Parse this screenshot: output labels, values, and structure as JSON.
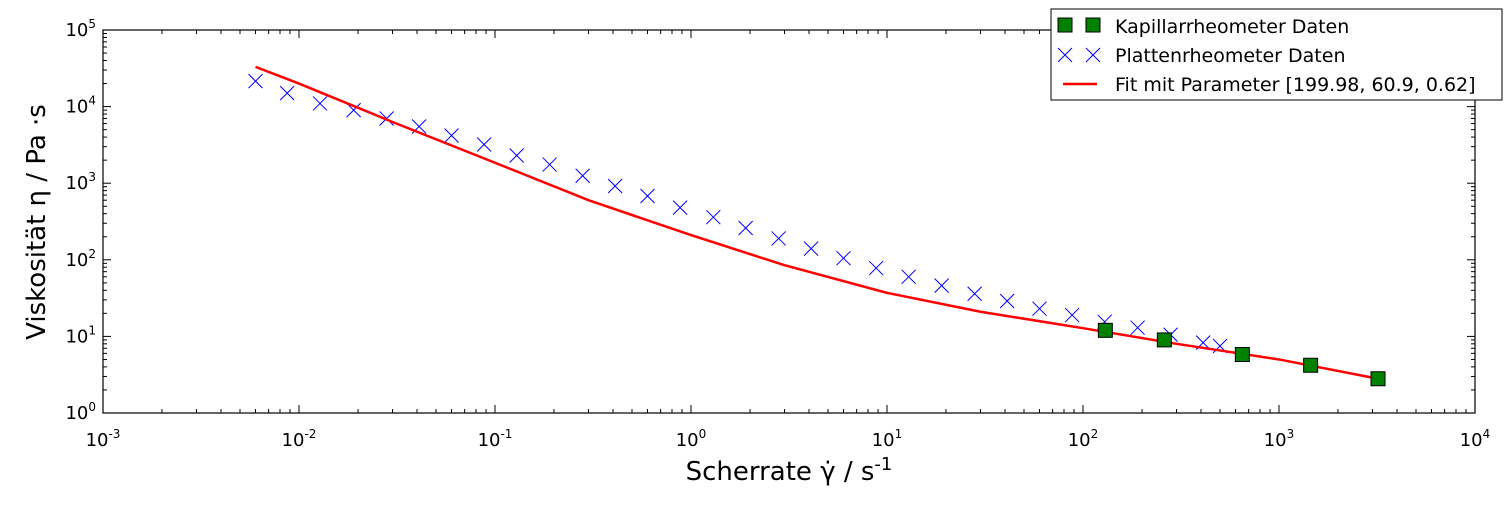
{
  "chart_data": {
    "type": "scatter",
    "xscale": "log",
    "yscale": "log",
    "xlim": [
      0.001,
      10000
    ],
    "ylim": [
      1,
      100000
    ],
    "x_ticks": [
      {
        "base": "10",
        "exp": "-3"
      },
      {
        "base": "10",
        "exp": "-2"
      },
      {
        "base": "10",
        "exp": "-1"
      },
      {
        "base": "10",
        "exp": "0"
      },
      {
        "base": "10",
        "exp": "1"
      },
      {
        "base": "10",
        "exp": "2"
      },
      {
        "base": "10",
        "exp": "3"
      },
      {
        "base": "10",
        "exp": "4"
      }
    ],
    "y_ticks": [
      {
        "base": "10",
        "exp": "0"
      },
      {
        "base": "10",
        "exp": "1"
      },
      {
        "base": "10",
        "exp": "2"
      },
      {
        "base": "10",
        "exp": "3"
      },
      {
        "base": "10",
        "exp": "4"
      },
      {
        "base": "10",
        "exp": "5"
      }
    ],
    "xlabel": {
      "main": "Scherrate γ̇ / s",
      "exp": "-1"
    },
    "ylabel": "Viskosität η / Pa ·s",
    "grid": false,
    "legend_position": "top-right",
    "series": [
      {
        "name": "Kapillarrheometer Daten",
        "marker": "square",
        "color": "#008000",
        "x": [
          130,
          260,
          650,
          1450,
          3200
        ],
        "y": [
          12.0,
          9.0,
          5.8,
          4.2,
          2.8
        ]
      },
      {
        "name": "Plattenrheometer Daten",
        "marker": "x",
        "color": "#0000ff",
        "x": [
          0.006,
          0.0087,
          0.0128,
          0.019,
          0.028,
          0.041,
          0.06,
          0.088,
          0.129,
          0.19,
          0.28,
          0.41,
          0.6,
          0.88,
          1.3,
          1.9,
          2.8,
          4.1,
          6.0,
          8.8,
          12.9,
          19,
          28,
          41,
          60,
          88,
          129,
          190,
          280,
          410,
          500
        ],
        "y": [
          21500,
          15000,
          11000,
          9000,
          7000,
          5500,
          4200,
          3200,
          2300,
          1750,
          1250,
          920,
          680,
          480,
          360,
          260,
          190,
          140,
          105,
          78,
          60,
          46,
          36,
          29,
          23,
          19,
          15.5,
          13,
          10.5,
          8.3,
          7.5
        ]
      },
      {
        "name": "Fit mit Parameter [199.98, 60.9, 0.62]",
        "marker": "line",
        "color": "#ff0000",
        "x": [
          0.006,
          0.01,
          0.03,
          0.1,
          0.3,
          1,
          3,
          10,
          30,
          100,
          300,
          1000,
          3200
        ],
        "y": [
          33000,
          20000,
          6300,
          1850,
          600,
          210,
          85,
          37,
          21,
          12.8,
          8.0,
          5.0,
          2.8
        ]
      }
    ]
  }
}
